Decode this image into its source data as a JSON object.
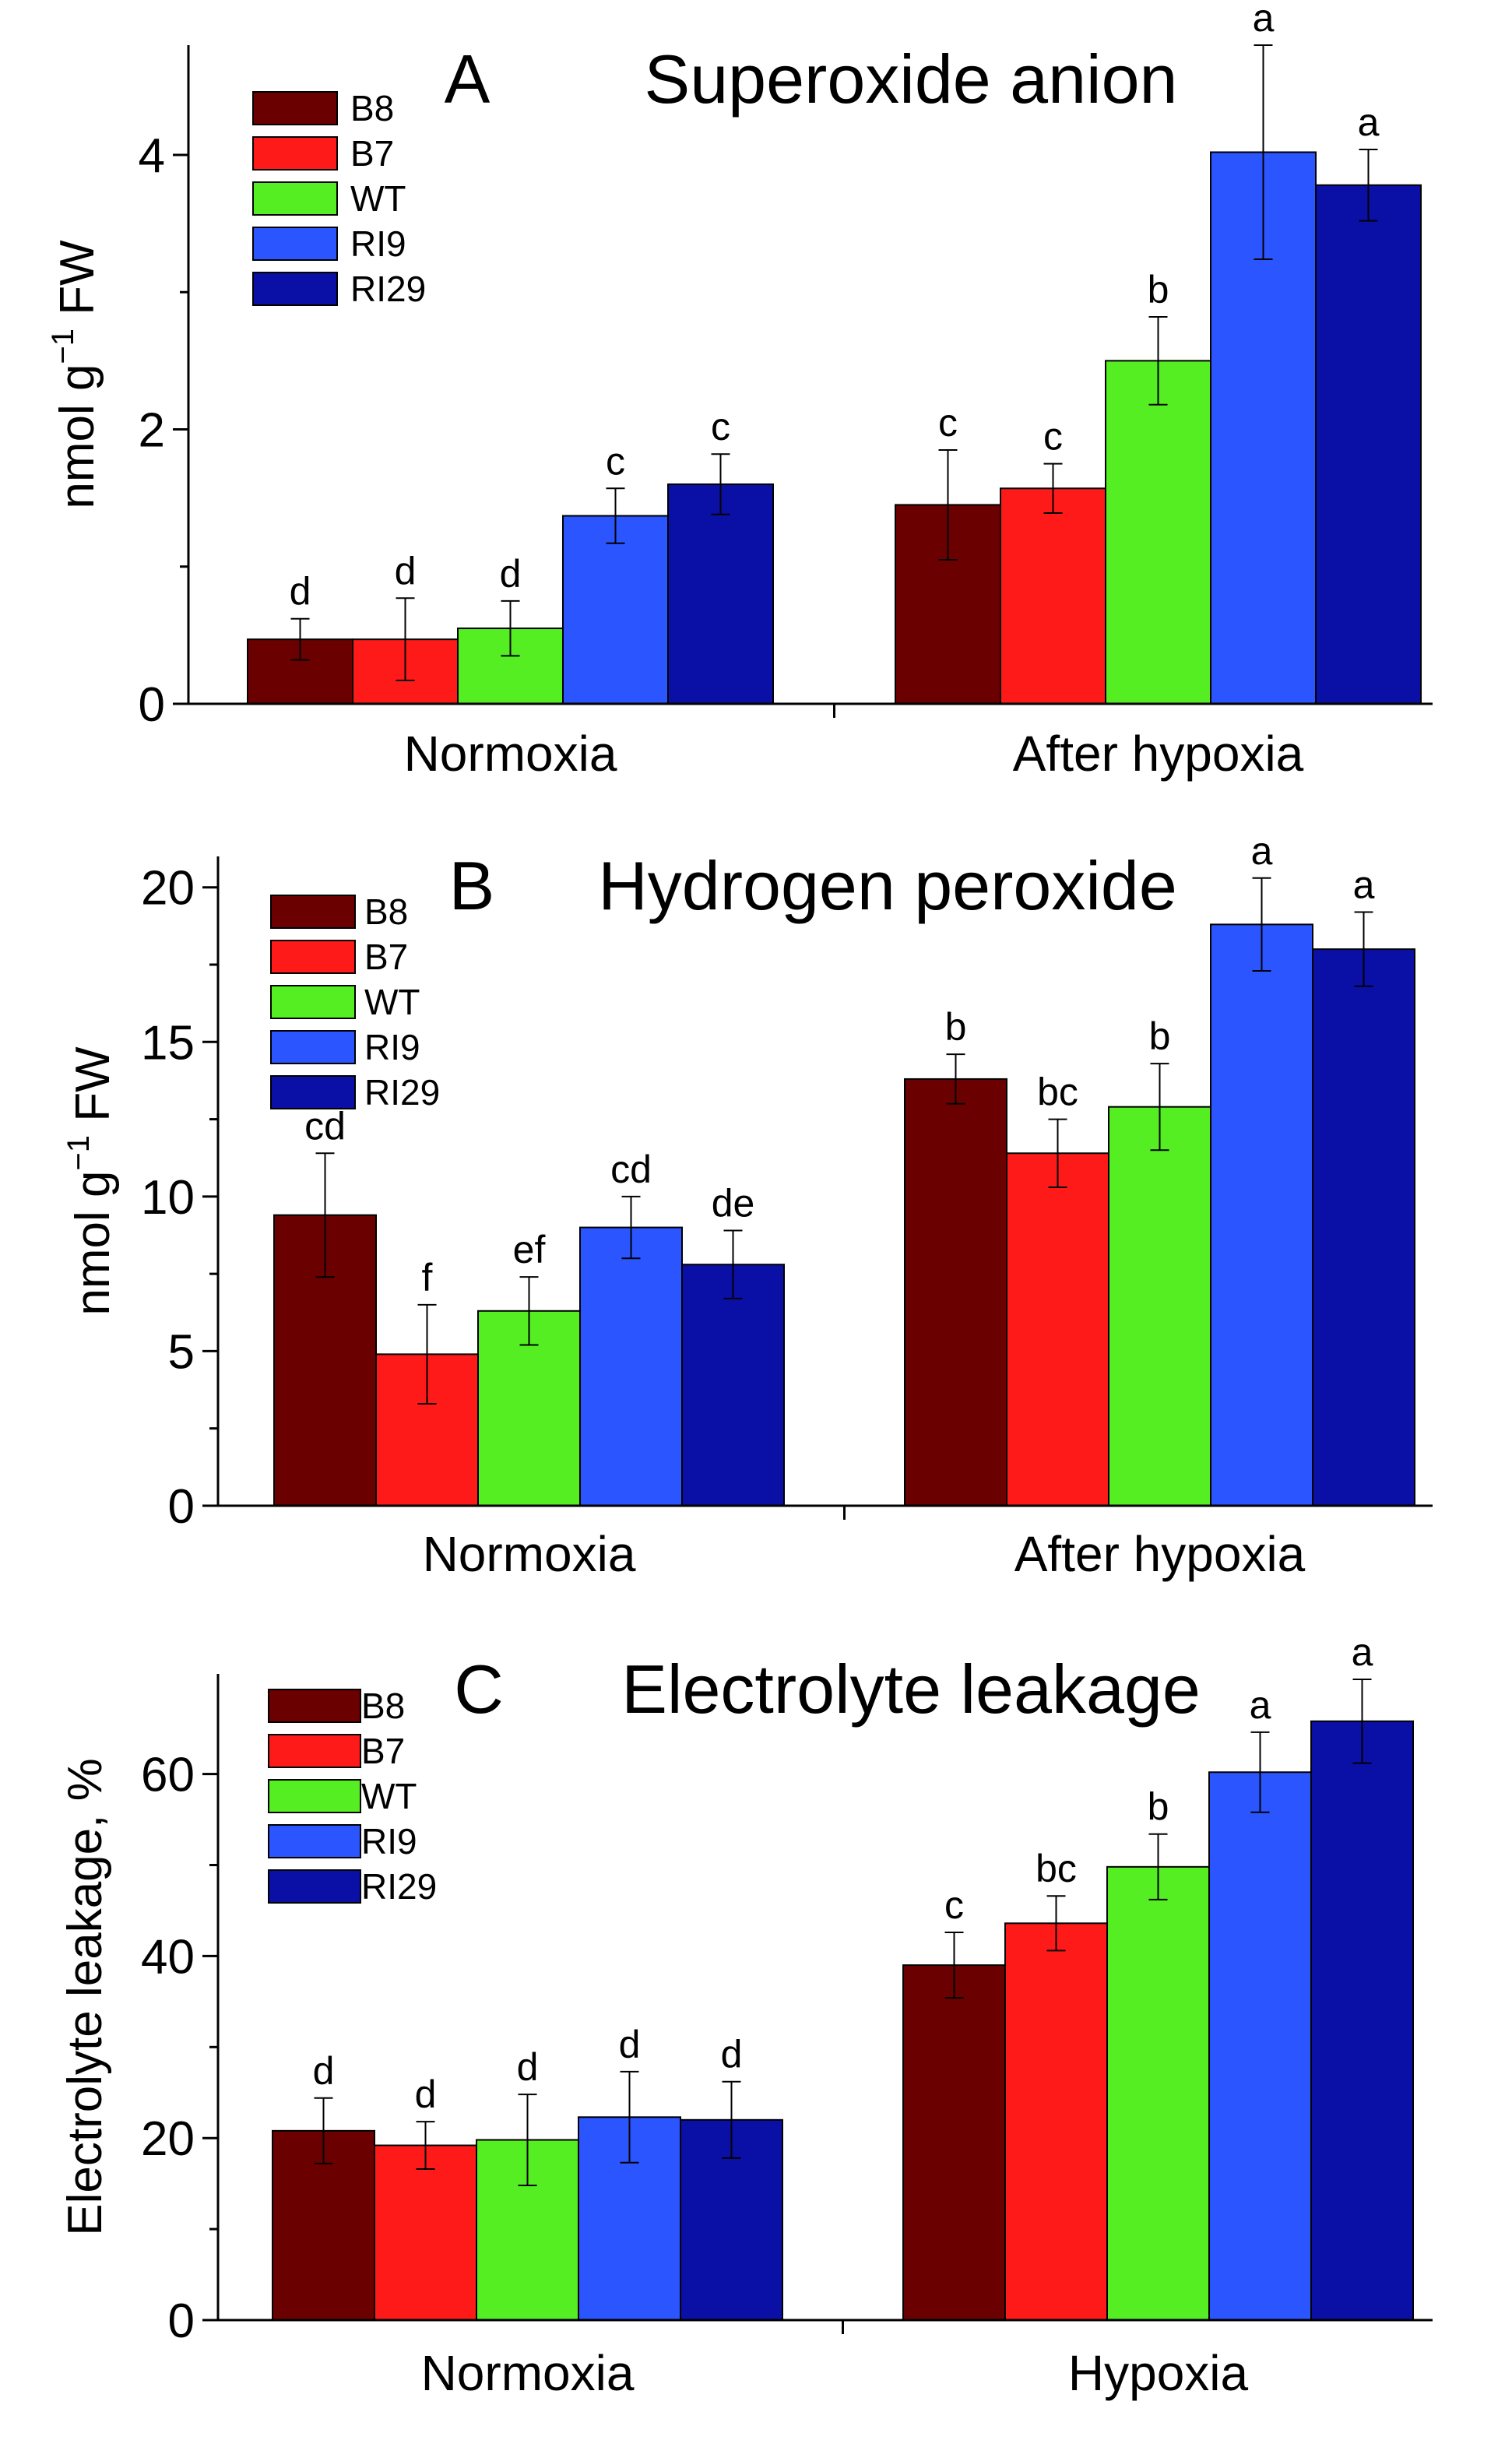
{
  "colors": {
    "B8": "#6b0000",
    "B7": "#ff1a1a",
    "WT": "#55ee22",
    "RI9": "#2b55ff",
    "RI29": "#0a10a6"
  },
  "legend": [
    "B8",
    "B7",
    "WT",
    "RI9",
    "RI29"
  ],
  "chart_data": [
    {
      "type": "bar",
      "panel": "A",
      "title": "Superoxide anion",
      "ylabel_main": "nmol g",
      "ylabel_sup": "−1",
      "ylabel_tail": " FW",
      "ylim": [
        0,
        4.8
      ],
      "yticks": [
        0,
        2,
        4
      ],
      "yticks_minor": [
        1,
        3
      ],
      "categories": [
        "Normoxia",
        "After hypoxia"
      ],
      "series": [
        {
          "name": "B8",
          "values": [
            0.47,
            1.45
          ],
          "errors": [
            0.15,
            0.4
          ],
          "letters": [
            "d",
            "c"
          ]
        },
        {
          "name": "B7",
          "values": [
            0.47,
            1.57
          ],
          "errors": [
            0.3,
            0.18
          ],
          "letters": [
            "d",
            "c"
          ]
        },
        {
          "name": "WT",
          "values": [
            0.55,
            2.5
          ],
          "errors": [
            0.2,
            0.32
          ],
          "letters": [
            "d",
            "b"
          ]
        },
        {
          "name": "RI9",
          "values": [
            1.37,
            4.02
          ],
          "errors": [
            0.2,
            0.78
          ],
          "letters": [
            "c",
            "a"
          ]
        },
        {
          "name": "RI29",
          "values": [
            1.6,
            3.78
          ],
          "errors": [
            0.22,
            0.26
          ],
          "letters": [
            "c",
            "a"
          ]
        }
      ]
    },
    {
      "type": "bar",
      "panel": "B",
      "title": "Hydrogen peroxide",
      "ylabel_main": "nmol g",
      "ylabel_sup": "−1",
      "ylabel_tail": " FW",
      "ylim": [
        0,
        21
      ],
      "yticks": [
        0,
        5,
        10,
        15,
        20
      ],
      "yticks_minor": [
        2.5,
        7.5,
        12.5,
        17.5
      ],
      "categories": [
        "Normoxia",
        "After hypoxia"
      ],
      "series": [
        {
          "name": "B8",
          "values": [
            9.4,
            13.8
          ],
          "errors": [
            2.0,
            0.8
          ],
          "letters": [
            "cd",
            "b"
          ]
        },
        {
          "name": "B7",
          "values": [
            4.9,
            11.4
          ],
          "errors": [
            1.6,
            1.1
          ],
          "letters": [
            "f",
            "bc"
          ]
        },
        {
          "name": "WT",
          "values": [
            6.3,
            12.9
          ],
          "errors": [
            1.1,
            1.4
          ],
          "letters": [
            "ef",
            "b"
          ]
        },
        {
          "name": "RI9",
          "values": [
            9.0,
            18.8
          ],
          "errors": [
            1.0,
            1.5
          ],
          "letters": [
            "cd",
            "a"
          ]
        },
        {
          "name": "RI29",
          "values": [
            7.8,
            18.0
          ],
          "errors": [
            1.1,
            1.2
          ],
          "letters": [
            "de",
            "a"
          ]
        }
      ]
    },
    {
      "type": "bar",
      "panel": "C",
      "title": "Electrolyte leakage",
      "ylabel_main": "Electrolyte leakage, %",
      "ylabel_sup": "",
      "ylabel_tail": "",
      "ylim": [
        0,
        71
      ],
      "yticks": [
        0,
        20,
        40,
        60
      ],
      "yticks_minor": [
        10,
        30,
        50
      ],
      "categories": [
        "Normoxia",
        "Hypoxia"
      ],
      "series": [
        {
          "name": "B8",
          "values": [
            20.8,
            39.0
          ],
          "errors": [
            3.6,
            3.6
          ],
          "letters": [
            "d",
            "c"
          ]
        },
        {
          "name": "B7",
          "values": [
            19.2,
            43.6
          ],
          "errors": [
            2.6,
            3.0
          ],
          "letters": [
            "d",
            "bc"
          ]
        },
        {
          "name": "WT",
          "values": [
            19.8,
            49.8
          ],
          "errors": [
            5.0,
            3.6
          ],
          "letters": [
            "d",
            "b"
          ]
        },
        {
          "name": "RI9",
          "values": [
            22.3,
            60.2
          ],
          "errors": [
            5.0,
            4.4
          ],
          "letters": [
            "d",
            "a"
          ]
        },
        {
          "name": "RI29",
          "values": [
            22.0,
            65.8
          ],
          "errors": [
            4.2,
            4.6
          ],
          "letters": [
            "d",
            "a"
          ]
        }
      ]
    }
  ]
}
